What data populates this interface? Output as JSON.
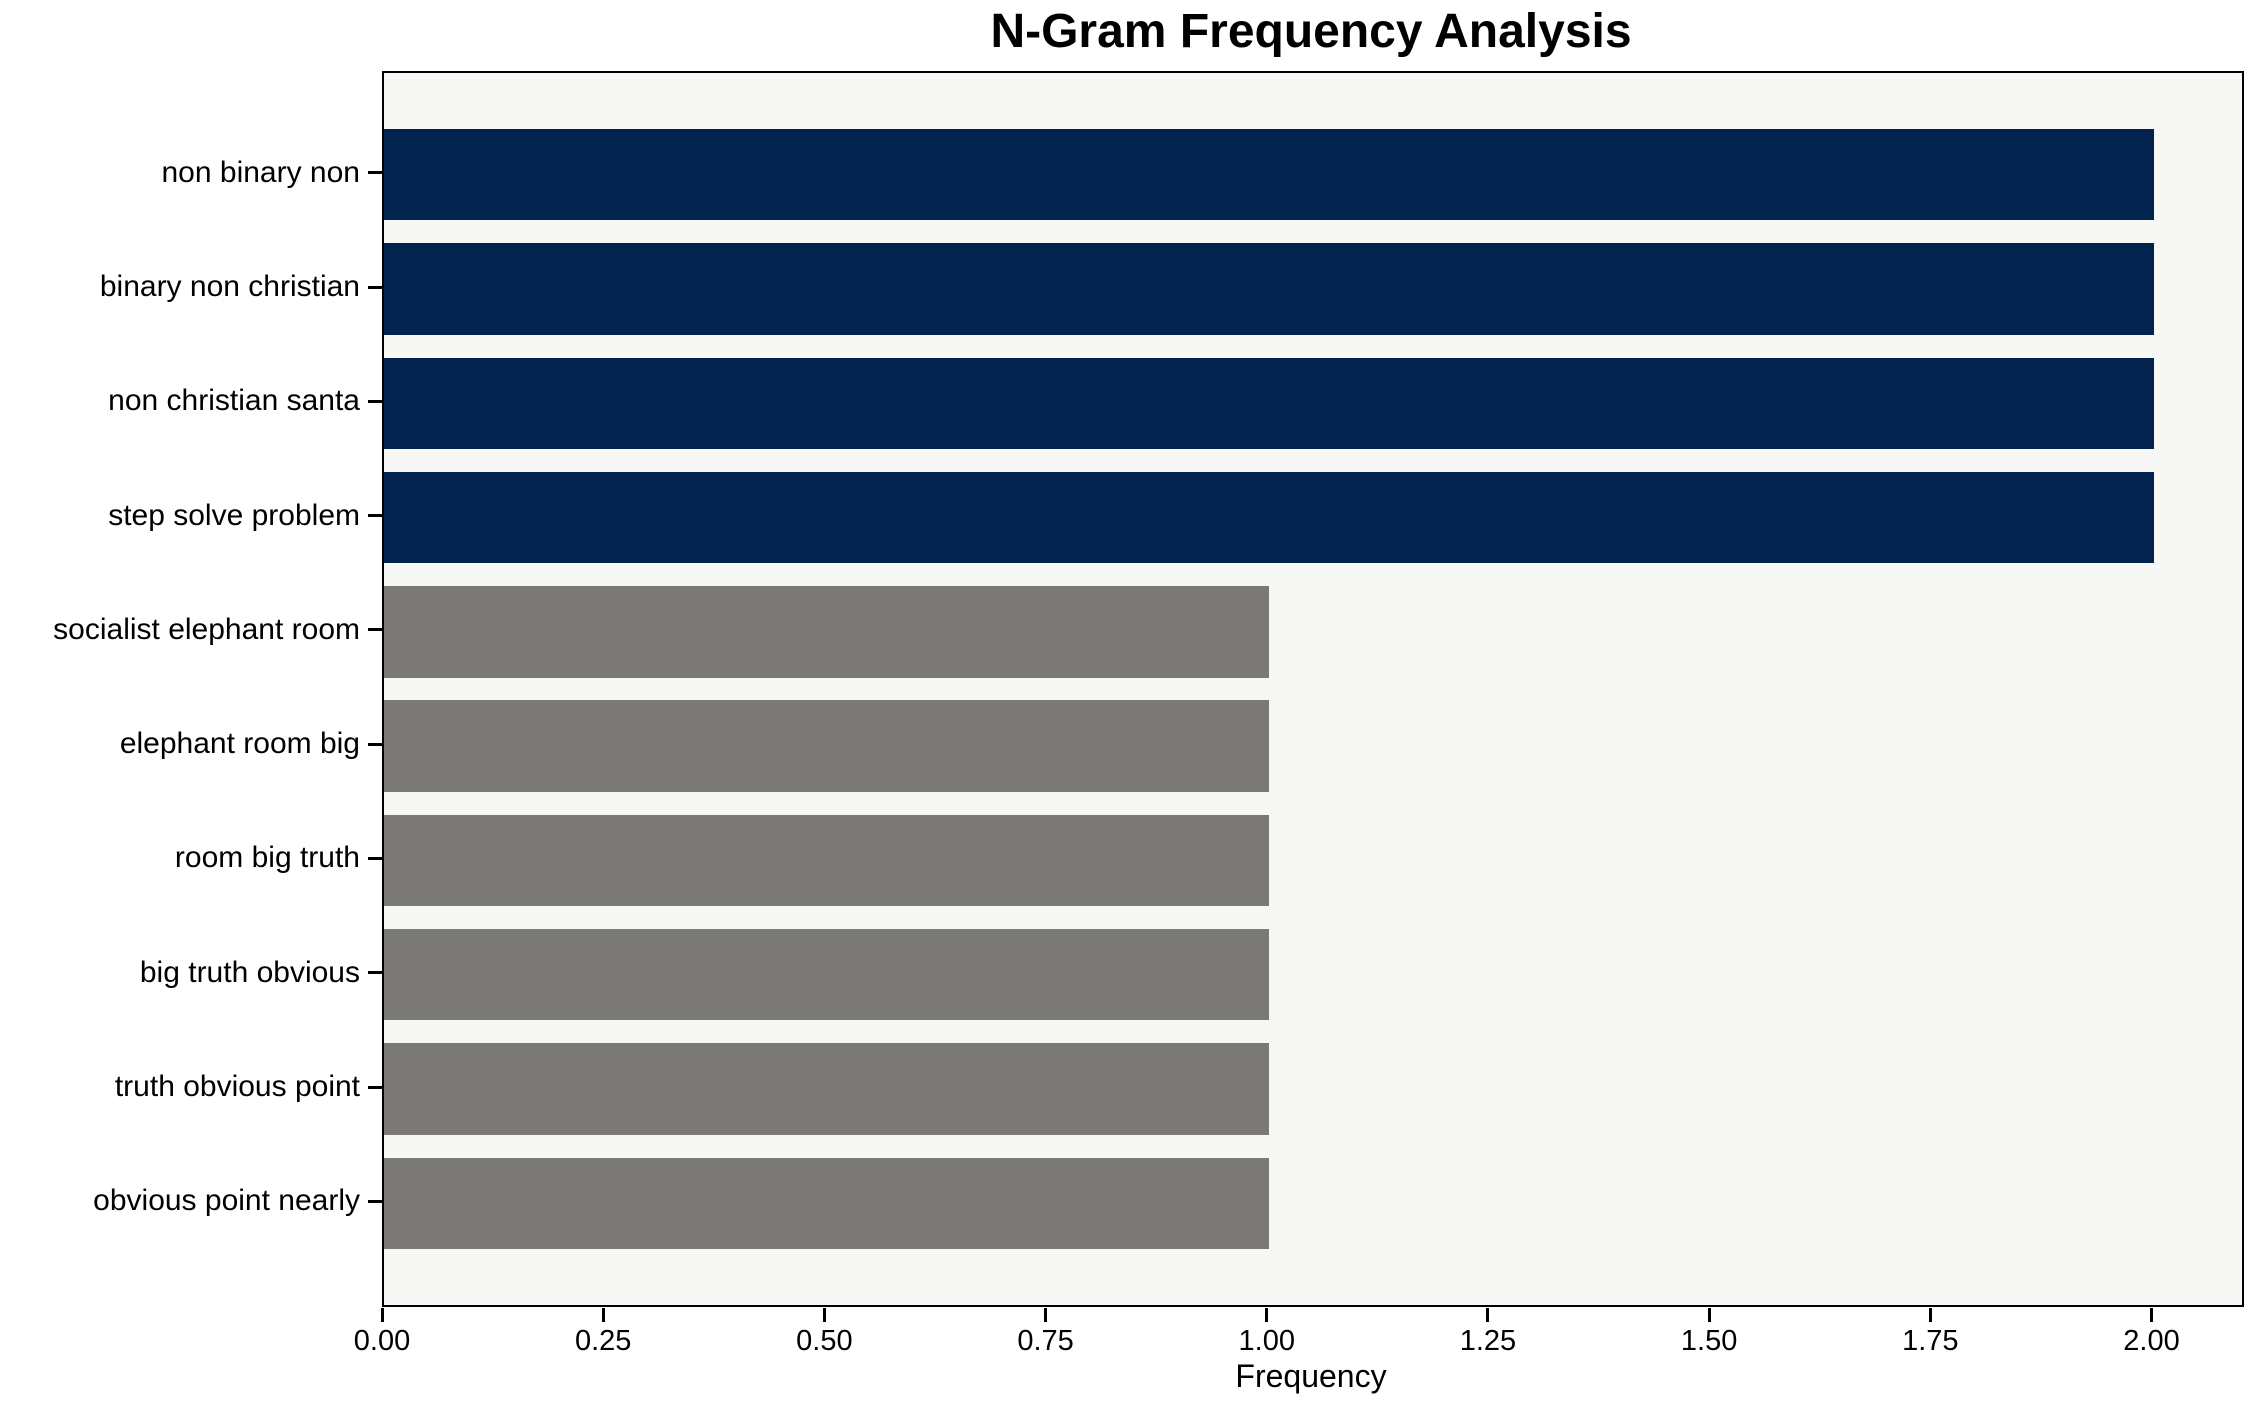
{
  "chart_data": {
    "type": "bar",
    "orientation": "horizontal",
    "title": "N-Gram Frequency Analysis",
    "xlabel": "Frequency",
    "ylabel": "",
    "categories": [
      "non binary non",
      "binary non christian",
      "non christian santa",
      "step solve problem",
      "socialist elephant room",
      "elephant room big",
      "room big truth",
      "big truth obvious",
      "truth obvious point",
      "obvious point nearly"
    ],
    "values": [
      2,
      2,
      2,
      2,
      1,
      1,
      1,
      1,
      1,
      1
    ],
    "bar_colors": [
      "#02234d",
      "#02234d",
      "#02234d",
      "#02234d",
      "#7a7975",
      "#7a7975",
      "#7a7975",
      "#7a7975",
      "#7a7975",
      "#7a7975"
    ],
    "xticks": [
      "0.00",
      "0.25",
      "0.50",
      "0.75",
      "1.00",
      "1.25",
      "1.50",
      "1.75",
      "2.00"
    ],
    "xtick_values": [
      0,
      0.25,
      0.5,
      0.75,
      1.0,
      1.25,
      1.5,
      1.75,
      2.0
    ],
    "xlim": [
      0,
      2.1
    ],
    "grid": false,
    "legend": null,
    "colors": {
      "high_frequency_bar": "#02234d",
      "low_frequency_bar": "#7a7975",
      "plot_background": "#f7f7f5",
      "figure_background": "#ffffff",
      "spine": "#000000",
      "text": "#000000"
    }
  }
}
